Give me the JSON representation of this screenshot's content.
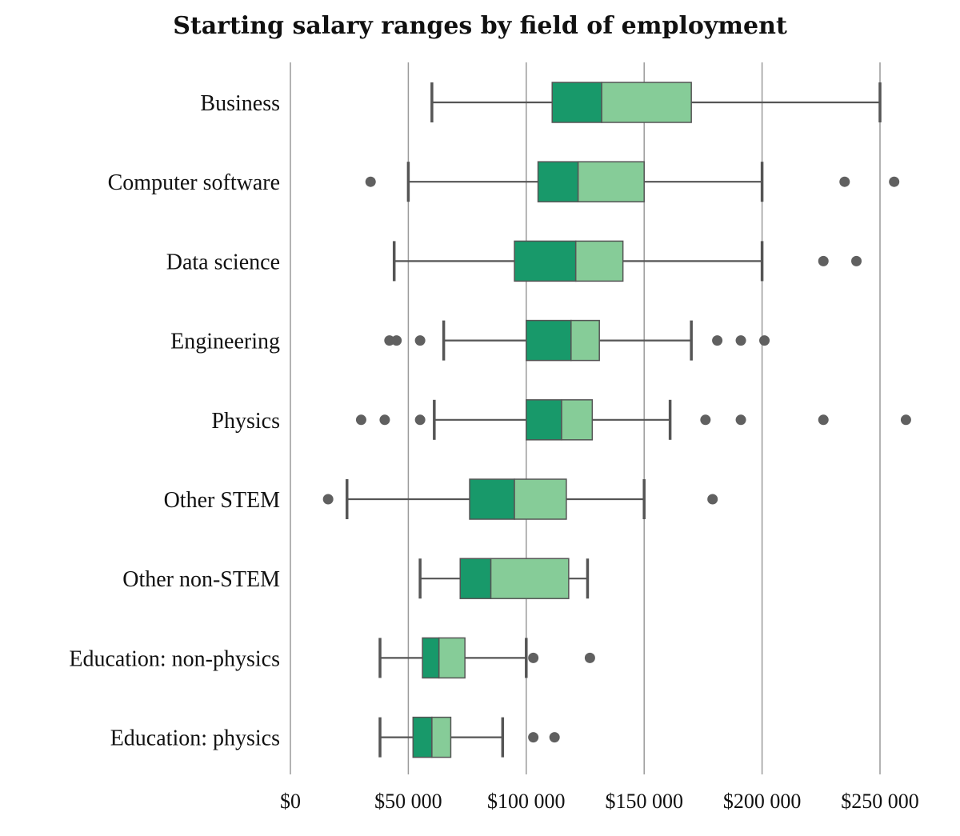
{
  "chart_data": {
    "type": "boxplot",
    "title": "Starting salary ranges by field of employment",
    "xlabel": "",
    "ylabel": "",
    "xlim": [
      0,
      260000
    ],
    "xticks": [
      {
        "value": 0,
        "label": "$0"
      },
      {
        "value": 50000,
        "label": "$50 000"
      },
      {
        "value": 100000,
        "label": "$100 000"
      },
      {
        "value": 150000,
        "label": "$150 000"
      },
      {
        "value": 200000,
        "label": "$200 000"
      },
      {
        "value": 250000,
        "label": "$250 000"
      }
    ],
    "colors": {
      "lower_box": "#18996a",
      "upper_box": "#86cc98",
      "whisker": "#555555",
      "outlier": "#606060",
      "grid": "#9a9a9a"
    },
    "series": [
      {
        "name": "Business",
        "whisker_low": 60000,
        "q1": 111000,
        "median": 132000,
        "q3": 170000,
        "whisker_high": 250000,
        "outliers": []
      },
      {
        "name": "Computer software",
        "whisker_low": 50000,
        "q1": 105000,
        "median": 122000,
        "q3": 150000,
        "whisker_high": 200000,
        "outliers": [
          34000,
          235000,
          256000
        ]
      },
      {
        "name": "Data science",
        "whisker_low": 44000,
        "q1": 95000,
        "median": 121000,
        "q3": 141000,
        "whisker_high": 200000,
        "outliers": [
          226000,
          240000
        ]
      },
      {
        "name": "Engineering",
        "whisker_low": 65000,
        "q1": 100000,
        "median": 119000,
        "q3": 131000,
        "whisker_high": 170000,
        "outliers": [
          42000,
          45000,
          55000,
          181000,
          191000,
          201000
        ]
      },
      {
        "name": "Physics",
        "whisker_low": 61000,
        "q1": 100000,
        "median": 115000,
        "q3": 128000,
        "whisker_high": 161000,
        "outliers": [
          30000,
          40000,
          55000,
          176000,
          191000,
          226000,
          261000
        ]
      },
      {
        "name": "Other STEM",
        "whisker_low": 24000,
        "q1": 76000,
        "median": 95000,
        "q3": 117000,
        "whisker_high": 150000,
        "outliers": [
          16000,
          179000
        ]
      },
      {
        "name": "Other non-STEM",
        "whisker_low": 55000,
        "q1": 72000,
        "median": 85000,
        "q3": 118000,
        "whisker_high": 126000,
        "outliers": []
      },
      {
        "name": "Education: non-physics",
        "whisker_low": 38000,
        "q1": 56000,
        "median": 63000,
        "q3": 74000,
        "whisker_high": 100000,
        "outliers": [
          103000,
          127000
        ]
      },
      {
        "name": "Education: physics",
        "whisker_low": 38000,
        "q1": 52000,
        "median": 60000,
        "q3": 68000,
        "whisker_high": 90000,
        "outliers": [
          103000,
          112000
        ]
      }
    ]
  }
}
